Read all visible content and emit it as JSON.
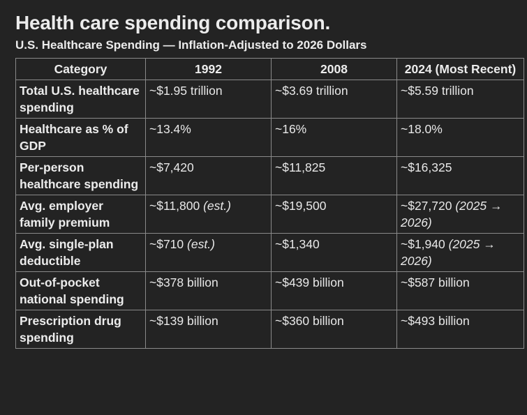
{
  "title": "Health care spending comparison.",
  "subtitle": "U.S. Healthcare Spending — Inflation-Adjusted to 2026 Dollars",
  "table": {
    "headers": [
      "Category",
      "1992",
      "2008",
      "2024 (Most Recent)"
    ],
    "rows": [
      {
        "category": "Total U.S. healthcare spending",
        "cells": [
          {
            "value": "~$1.95 trillion",
            "note": ""
          },
          {
            "value": "~$3.69 trillion",
            "note": ""
          },
          {
            "value": "~$5.59 trillion",
            "note": ""
          }
        ]
      },
      {
        "category": "Healthcare as % of GDP",
        "cells": [
          {
            "value": "~13.4%",
            "note": ""
          },
          {
            "value": "~16%",
            "note": ""
          },
          {
            "value": "~18.0%",
            "note": ""
          }
        ]
      },
      {
        "category": "Per-person healthcare spending",
        "cells": [
          {
            "value": "~$7,420",
            "note": ""
          },
          {
            "value": "~$11,825",
            "note": ""
          },
          {
            "value": "~$16,325",
            "note": ""
          }
        ]
      },
      {
        "category": "Avg. employer family premium",
        "cells": [
          {
            "value": "~$11,800",
            "note": "(est.)"
          },
          {
            "value": "~$19,500",
            "note": ""
          },
          {
            "value": "~$27,720",
            "note": "(2025 → 2026)"
          }
        ]
      },
      {
        "category": "Avg. single-plan deductible",
        "cells": [
          {
            "value": "~$710",
            "note": "(est.)"
          },
          {
            "value": "~$1,340",
            "note": ""
          },
          {
            "value": "~$1,940",
            "note": "(2025 → 2026)"
          }
        ]
      },
      {
        "category": "Out-of-pocket national spending",
        "cells": [
          {
            "value": "~$378 billion",
            "note": ""
          },
          {
            "value": "~$439 billion",
            "note": ""
          },
          {
            "value": "~$587 billion",
            "note": ""
          }
        ]
      },
      {
        "category": "Prescription drug spending",
        "cells": [
          {
            "value": "~$139 billion",
            "note": ""
          },
          {
            "value": "~$360 billion",
            "note": ""
          },
          {
            "value": "~$493 billion",
            "note": ""
          }
        ]
      }
    ]
  }
}
